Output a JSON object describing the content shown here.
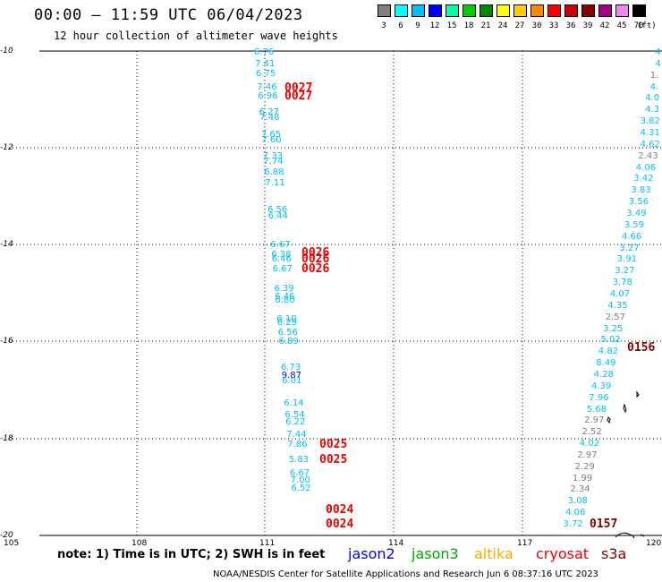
{
  "title": "00:00 — 11:59 UTC 06/04/2023",
  "subtitle": "12 hour collection of altimeter wave heights",
  "scale": {
    "colors": [
      "#808080",
      "#00ffff",
      "#00bfff",
      "#0000ff",
      "#00ffaa",
      "#00cc00",
      "#008800",
      "#ffff00",
      "#ffcc00",
      "#ff8800",
      "#ff0000",
      "#cc0000",
      "#880000",
      "#aa0088",
      "#ee88ee",
      "#000000"
    ],
    "labels": [
      "3",
      "6",
      "9",
      "12",
      "15",
      "18",
      "21",
      "24",
      "27",
      "30",
      "33",
      "36",
      "39",
      "42",
      "45",
      "70"
    ],
    "unit": "(ft)"
  },
  "axes": {
    "y_labels": [
      "-10",
      "-12",
      "-14",
      "-16",
      "-18",
      "-20"
    ],
    "x_labels": [
      "105",
      "108",
      "111",
      "114",
      "117",
      "120"
    ]
  },
  "track1_values": [
    {
      "v": "6.76",
      "c": "#00bfff"
    },
    {
      "v": "7.41",
      "c": "#00bfff"
    },
    {
      "v": "6.75",
      "c": "#00bfff"
    },
    {
      "v": "7.46",
      "c": "#00bfff"
    },
    {
      "v": "6.96",
      "c": "#00bfff"
    },
    {
      "v": "6.27",
      "c": "#00bfff"
    },
    {
      "v": "7.48",
      "c": "#00bfff"
    },
    {
      "v": "7.65",
      "c": "#00bfff"
    },
    {
      "v": "7.60",
      "c": "#00bfff"
    },
    {
      "v": "7.33",
      "c": "#00bfff"
    },
    {
      "v": "7.74",
      "c": "#00bfff"
    },
    {
      "v": "6.88",
      "c": "#00bfff"
    },
    {
      "v": "7.11",
      "c": "#00bfff"
    },
    {
      "v": "6.56",
      "c": "#00bfff"
    },
    {
      "v": "6.44",
      "c": "#00bfff"
    },
    {
      "v": "6.67",
      "c": "#00bfff"
    },
    {
      "v": "6.38",
      "c": "#00bfff"
    },
    {
      "v": "6.46",
      "c": "#00bfff"
    },
    {
      "v": "6.67",
      "c": "#00bfff"
    },
    {
      "v": "6.39",
      "c": "#00bfff"
    },
    {
      "v": "6.46",
      "c": "#00bfff"
    },
    {
      "v": "6.80",
      "c": "#00bfff"
    },
    {
      "v": "6.10",
      "c": "#00bfff"
    },
    {
      "v": "6.29",
      "c": "#00bfff"
    },
    {
      "v": "6.56",
      "c": "#00bfff"
    },
    {
      "v": "6.89",
      "c": "#00bfff"
    },
    {
      "v": "6.73",
      "c": "#00bfff"
    },
    {
      "v": "9.87",
      "c": "#0000ff"
    },
    {
      "v": "6.01",
      "c": "#00bfff"
    },
    {
      "v": "6.14",
      "c": "#00bfff"
    },
    {
      "v": "6.54",
      "c": "#00bfff"
    },
    {
      "v": "6.22",
      "c": "#00bfff"
    },
    {
      "v": "7.44",
      "c": "#00bfff"
    },
    {
      "v": "7.86",
      "c": "#00bfff"
    },
    {
      "v": "5.83",
      "c": "#00bfff"
    },
    {
      "v": "6.67",
      "c": "#00bfff"
    },
    {
      "v": "7.00",
      "c": "#00bfff"
    },
    {
      "v": "6.52",
      "c": "#00bfff"
    }
  ],
  "track2_values": [
    {
      "v": "4",
      "c": "#00bfff"
    },
    {
      "v": "4",
      "c": "#00bfff"
    },
    {
      "v": "1.",
      "c": "#808080"
    },
    {
      "v": "4.",
      "c": "#00bfff"
    },
    {
      "v": "4.0",
      "c": "#00bfff"
    },
    {
      "v": "4.3",
      "c": "#00bfff"
    },
    {
      "v": "3.82",
      "c": "#00bfff"
    },
    {
      "v": "4.31",
      "c": "#00bfff"
    },
    {
      "v": "4.62",
      "c": "#00bfff"
    },
    {
      "v": "2.43",
      "c": "#808080"
    },
    {
      "v": "4.06",
      "c": "#00bfff"
    },
    {
      "v": "3.42",
      "c": "#00bfff"
    },
    {
      "v": "3.83",
      "c": "#00bfff"
    },
    {
      "v": "3.56",
      "c": "#00bfff"
    },
    {
      "v": "3.49",
      "c": "#00bfff"
    },
    {
      "v": "3.59",
      "c": "#00bfff"
    },
    {
      "v": "4.66",
      "c": "#00bfff"
    },
    {
      "v": "3.27",
      "c": "#00bfff"
    },
    {
      "v": "3.91",
      "c": "#00bfff"
    },
    {
      "v": "3.27",
      "c": "#00bfff"
    },
    {
      "v": "3.78",
      "c": "#00bfff"
    },
    {
      "v": "4.07",
      "c": "#00bfff"
    },
    {
      "v": "4.35",
      "c": "#00bfff"
    },
    {
      "v": "2.57",
      "c": "#808080"
    },
    {
      "v": "3.25",
      "c": "#00bfff"
    },
    {
      "v": "5.02",
      "c": "#00bfff"
    },
    {
      "v": "4.82",
      "c": "#00bfff"
    },
    {
      "v": "8.49",
      "c": "#00bfff"
    },
    {
      "v": "4.28",
      "c": "#00bfff"
    },
    {
      "v": "4.39",
      "c": "#00bfff"
    },
    {
      "v": "7.96",
      "c": "#00bfff"
    },
    {
      "v": "5.68",
      "c": "#00bfff"
    },
    {
      "v": "2.97",
      "c": "#808080"
    },
    {
      "v": "2.52",
      "c": "#808080"
    },
    {
      "v": "4.02",
      "c": "#00bfff"
    },
    {
      "v": "2.97",
      "c": "#808080"
    },
    {
      "v": "2.29",
      "c": "#808080"
    },
    {
      "v": "1.99",
      "c": "#808080"
    },
    {
      "v": "2.34",
      "c": "#808080"
    },
    {
      "v": "3.08",
      "c": "#00bfff"
    },
    {
      "v": "4.06",
      "c": "#00bfff"
    },
    {
      "v": "3.72",
      "c": "#00bfff"
    }
  ],
  "time_labels": [
    {
      "t": "0027",
      "c": "#ee0000"
    },
    {
      "t": "0027",
      "c": "#ee0000"
    },
    {
      "t": "0026",
      "c": "#ee0000"
    },
    {
      "t": "0026",
      "c": "#ee0000"
    },
    {
      "t": "0026",
      "c": "#ee0000"
    },
    {
      "t": "0025",
      "c": "#ee0000"
    },
    {
      "t": "0025",
      "c": "#ee0000"
    },
    {
      "t": "0024",
      "c": "#ee0000"
    },
    {
      "t": "0024",
      "c": "#ee0000"
    },
    {
      "t": "0156",
      "c": "#880000"
    },
    {
      "t": "0157",
      "c": "#880000"
    }
  ],
  "note": "note: 1) Time is in UTC; 2) SWH is in feet",
  "legend": [
    {
      "name": "jason2",
      "color": "#0000ff"
    },
    {
      "name": "jason3",
      "color": "#00aa00"
    },
    {
      "name": "altika",
      "color": "#ffaa00"
    },
    {
      "name": "cryosat",
      "color": "#ee0000"
    },
    {
      "name": "s3a",
      "color": "#880000"
    }
  ],
  "credit": "NOAA/NESDIS Center for Satellite Applications and Research    Jun  6 08:37:16 UTC 2023"
}
